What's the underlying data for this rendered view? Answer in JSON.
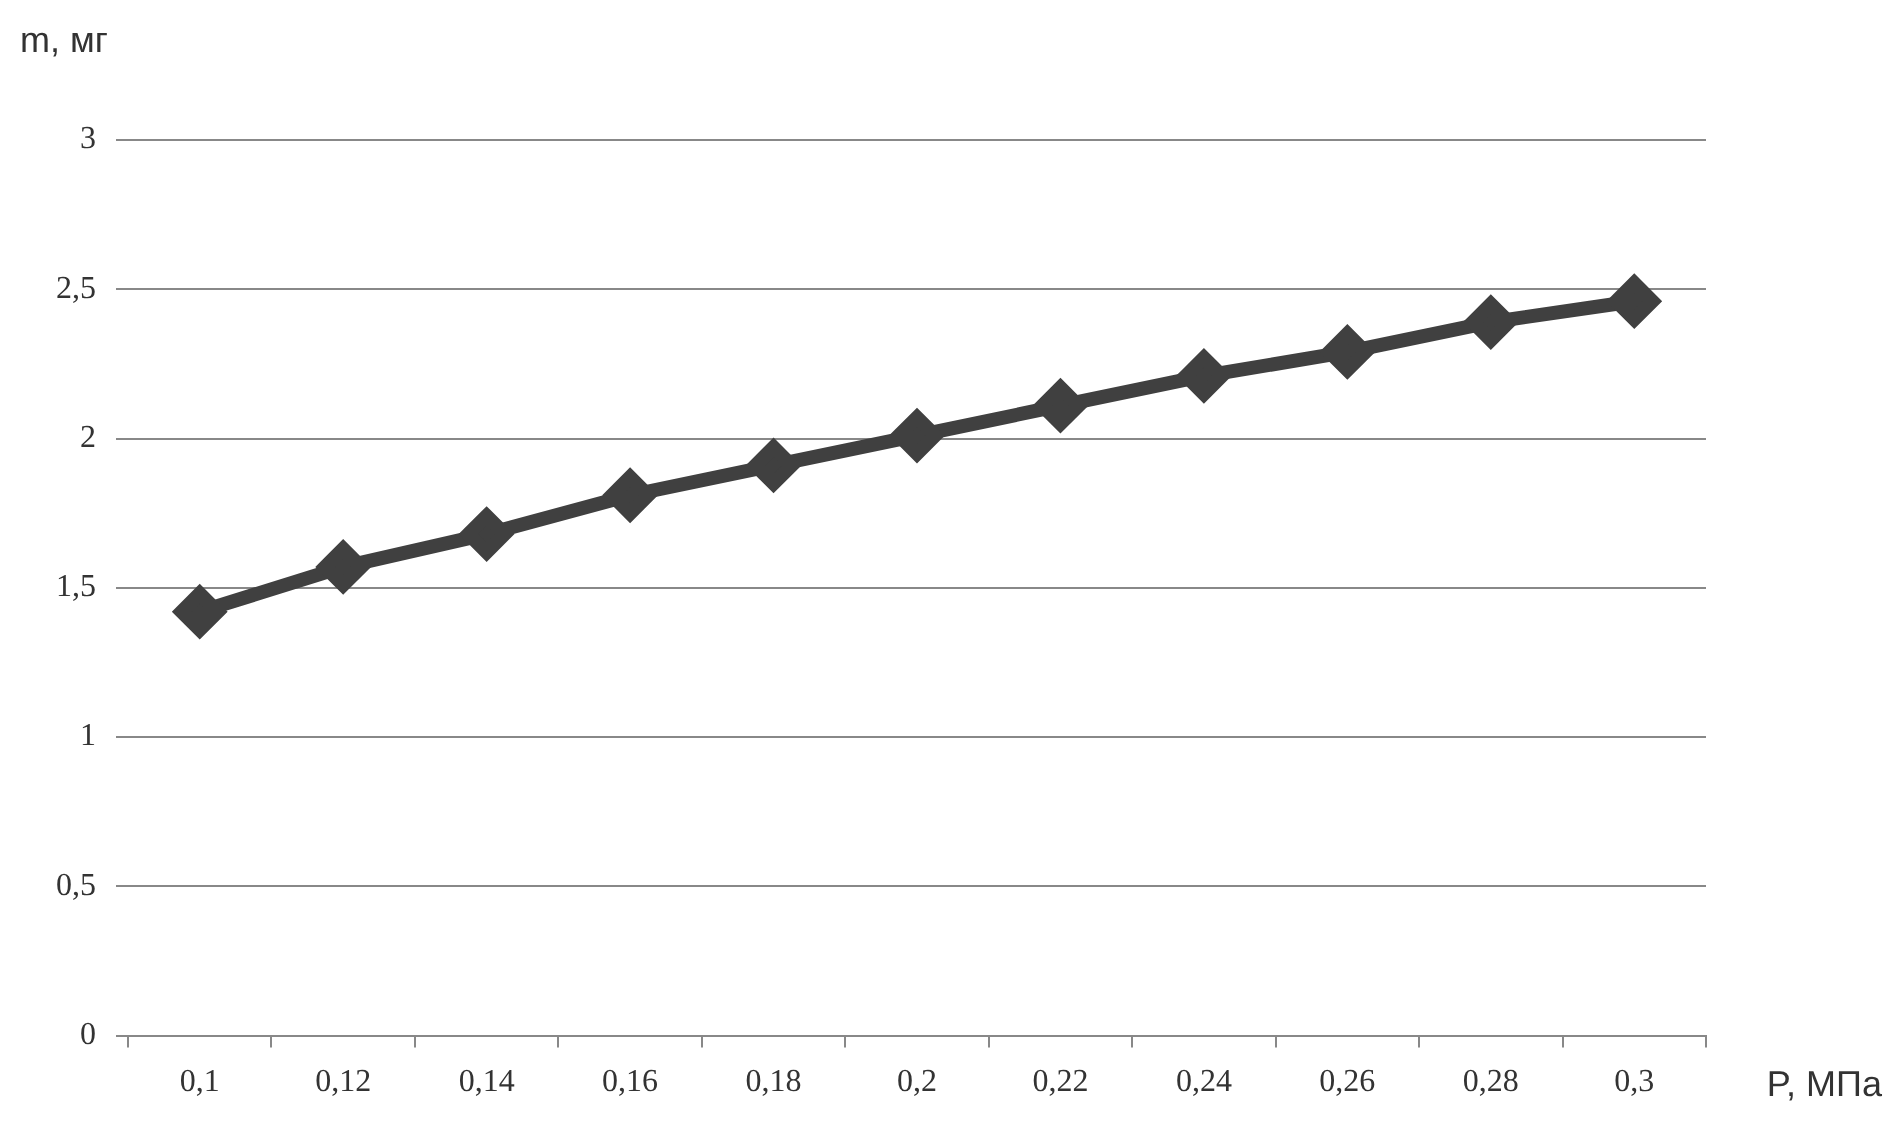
{
  "chart_data": {
    "type": "line",
    "xlabel": "P, МПа",
    "ylabel": "m, мг",
    "categories": [
      "0,1",
      "0,12",
      "0,14",
      "0,16",
      "0,18",
      "0,2",
      "0,22",
      "0,24",
      "0,26",
      "0,28",
      "0,3"
    ],
    "series": [
      {
        "color": "#404040",
        "values": [
          1.42,
          1.57,
          1.68,
          1.81,
          1.91,
          2.01,
          2.11,
          2.21,
          2.29,
          2.39,
          2.46
        ]
      }
    ],
    "ylim": [
      0,
      3
    ],
    "yticks": [
      0,
      {
        "value": 0.5,
        "label": "0,5"
      },
      1,
      {
        "value": 1.5,
        "label": "1,5"
      },
      2,
      {
        "value": 2.5,
        "label": "2,5"
      },
      3
    ],
    "grid": "y",
    "marker": "diamond",
    "line_style": "solid",
    "legend": false
  }
}
